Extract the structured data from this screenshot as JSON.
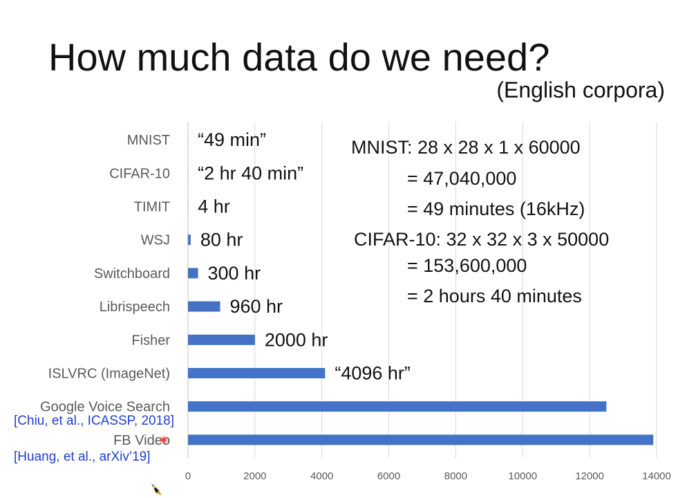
{
  "slide": {
    "title": "How much data do we need?",
    "subtitle": "(English corpora)"
  },
  "notes": {
    "lines": [
      "MNIST: 28 x 28 x 1 x 60000",
      "= 47,040,000",
      "= 49 minutes (16kHz)",
      "CIFAR-10: 32 x 32 x 3 x 50000",
      "= 153,600,000",
      "= 2 hours 40 minutes"
    ]
  },
  "citations": {
    "google": "[Chiu, et al., ICASSP, 2018]",
    "fb": "[Huang, et al., arXiv’19]"
  },
  "icons": {
    "pointer": "laser-pointer-dot-icon",
    "pen": "pen-icon"
  },
  "chart_data": {
    "type": "bar",
    "orientation": "horizontal",
    "categories": [
      "MNIST",
      "CIFAR-10",
      "TIMIT",
      "WSJ",
      "Switchboard",
      "Librispeech",
      "Fisher",
      "ISLVRC (ImageNet)",
      "Google Voice Search",
      "FB Video"
    ],
    "values": [
      0.8,
      2.7,
      4,
      80,
      300,
      960,
      2000,
      4096,
      12500,
      13900
    ],
    "value_labels": [
      "“49 min”",
      "“2 hr 40 min”",
      "4 hr",
      "80 hr",
      "300 hr",
      "960 hr",
      "2000 hr",
      "“4096 hr”",
      "",
      ""
    ],
    "x_ticks": [
      0,
      2000,
      4000,
      6000,
      8000,
      10000,
      12000,
      14000
    ],
    "xlim": [
      0,
      14000
    ],
    "grid": "vertical",
    "bar_color": "#4472c4"
  }
}
